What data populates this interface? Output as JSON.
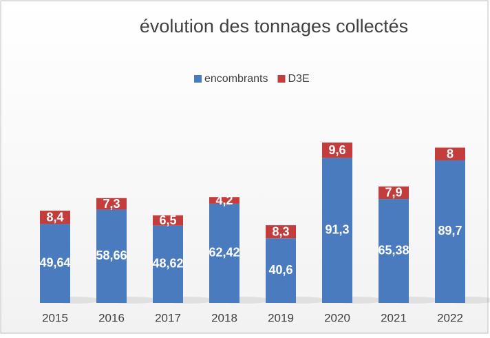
{
  "chart_data": {
    "type": "stacked-bar",
    "title": "évolution des tonnages collectés",
    "categories": [
      "2015",
      "2016",
      "2017",
      "2018",
      "2019",
      "2020",
      "2021",
      "2022"
    ],
    "series": [
      {
        "name": "encombrants",
        "color": "#4a7bbf",
        "values": [
          49.64,
          58.66,
          48.62,
          62.42,
          40.6,
          91.3,
          65.38,
          89.7
        ],
        "value_labels": [
          "49,64",
          "58,66",
          "48,62",
          "62,42",
          "40,6",
          "91,3",
          "65,38",
          "89,7"
        ]
      },
      {
        "name": "D3E",
        "color": "#c43d3d",
        "values": [
          8.4,
          7.3,
          6.5,
          4.2,
          8.3,
          9.6,
          7.9,
          8
        ],
        "value_labels": [
          "8,4",
          "7,3",
          "6,5",
          "4,2",
          "8,3",
          "9,6",
          "7,9",
          "8"
        ]
      }
    ],
    "ylim": [
      0,
      120
    ],
    "legend": "top"
  }
}
